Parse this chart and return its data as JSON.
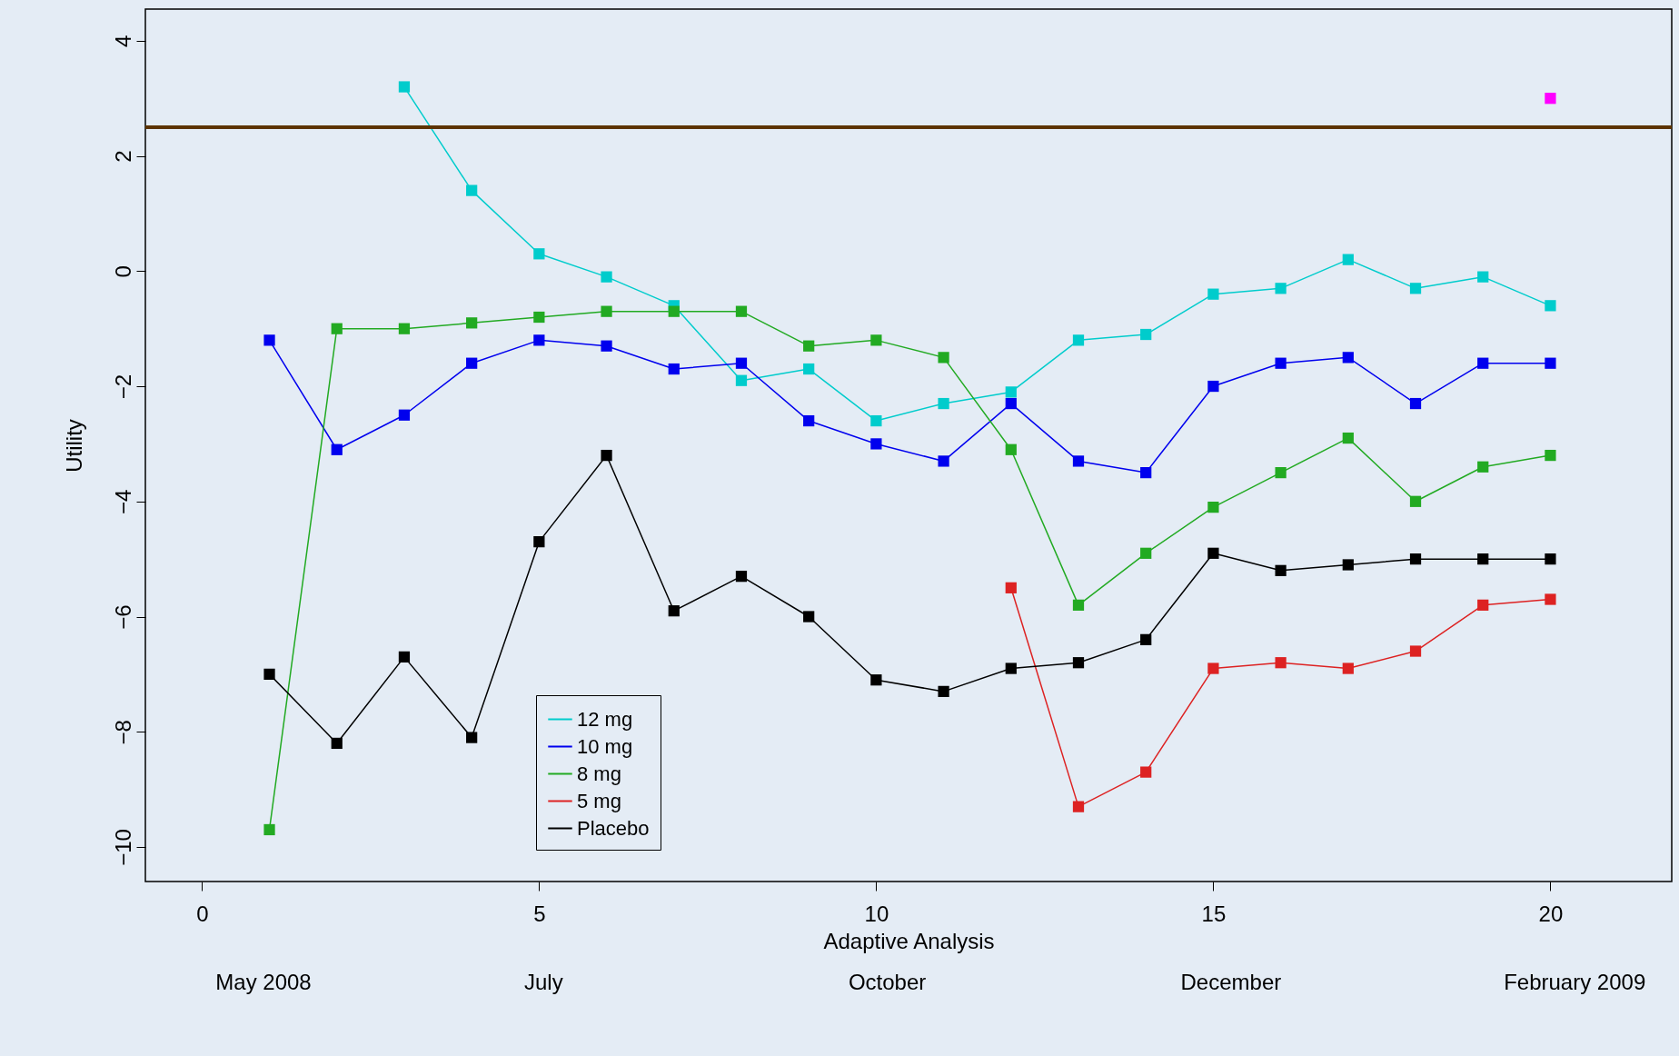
{
  "chart_data": {
    "type": "line",
    "xlabel": "Adaptive Analysis",
    "ylabel": "Utility",
    "xlim": [
      -0.84,
      21.8
    ],
    "ylim": [
      -10.6,
      4.55
    ],
    "xticks": [
      0,
      5,
      10,
      15,
      20
    ],
    "yticks": [
      -10,
      -8,
      -6,
      -4,
      -2,
      0,
      2,
      4
    ],
    "marker": "square",
    "legend": "bottom left",
    "grid": false,
    "series": [
      {
        "name": "12 mg",
        "color": "#00cccc",
        "x": [
          3,
          4,
          5,
          6,
          7,
          8,
          9,
          10,
          11,
          12,
          13,
          14,
          15,
          16,
          17,
          18,
          19,
          20
        ],
        "values": [
          3.2,
          1.4,
          0.3,
          -0.1,
          -0.6,
          -1.9,
          -1.7,
          -2.6,
          -2.3,
          -2.1,
          -1.2,
          -1.1,
          -0.4,
          -0.3,
          0.2,
          -0.3,
          -0.1,
          -0.6
        ]
      },
      {
        "name": "10 mg",
        "color": "#0000ee",
        "x": [
          1,
          2,
          3,
          4,
          5,
          6,
          7,
          8,
          9,
          10,
          11,
          12,
          13,
          14,
          15,
          16,
          17,
          18,
          19,
          20
        ],
        "values": [
          -1.2,
          -3.1,
          -2.5,
          -1.6,
          -1.2,
          -1.3,
          -1.7,
          -1.6,
          -2.6,
          -3.0,
          -3.3,
          -2.3,
          -3.3,
          -3.5,
          -2.0,
          -1.6,
          -1.5,
          -2.3,
          -1.6,
          -1.6
        ]
      },
      {
        "name": "8 mg",
        "color": "#22aa22",
        "x": [
          1,
          2,
          3,
          4,
          5,
          6,
          7,
          8,
          9,
          10,
          11,
          12,
          13,
          14,
          15,
          16,
          17,
          18,
          19,
          20
        ],
        "values": [
          -9.7,
          -1.0,
          -1.0,
          -0.9,
          -0.8,
          -0.7,
          -0.7,
          -0.7,
          -1.3,
          -1.2,
          -1.5,
          -3.1,
          -5.8,
          -4.9,
          -4.1,
          -3.5,
          -2.9,
          -4.0,
          -3.4,
          -3.2
        ]
      },
      {
        "name": "5 mg",
        "color": "#dd2222",
        "x": [
          12,
          13,
          14,
          15,
          16,
          17,
          18,
          19,
          20
        ],
        "values": [
          -5.5,
          -9.3,
          -8.7,
          -6.9,
          -6.8,
          -6.9,
          -6.6,
          -5.8,
          -5.7
        ]
      },
      {
        "name": "Placebo",
        "color": "#000000",
        "x": [
          1,
          2,
          3,
          4,
          5,
          6,
          7,
          8,
          9,
          10,
          11,
          12,
          13,
          14,
          15,
          16,
          17,
          18,
          19,
          20
        ],
        "values": [
          -7.0,
          -8.2,
          -6.7,
          -8.1,
          -4.7,
          -3.2,
          -5.9,
          -5.3,
          -6.0,
          -7.1,
          -7.3,
          -6.9,
          -6.8,
          -6.4,
          -4.9,
          -5.2,
          -5.1,
          -5.0,
          -5.0,
          -5.0
        ]
      },
      {
        "type": "scatter",
        "color": "#ff00ff",
        "x": [
          20
        ],
        "values": [
          3.0
        ]
      }
    ],
    "ref_lines": [
      {
        "axis": "y",
        "value": 2.5,
        "color": "#5c3300"
      }
    ],
    "annotations": [
      "May 2008",
      "July",
      "October",
      "December",
      "February 2009"
    ]
  }
}
